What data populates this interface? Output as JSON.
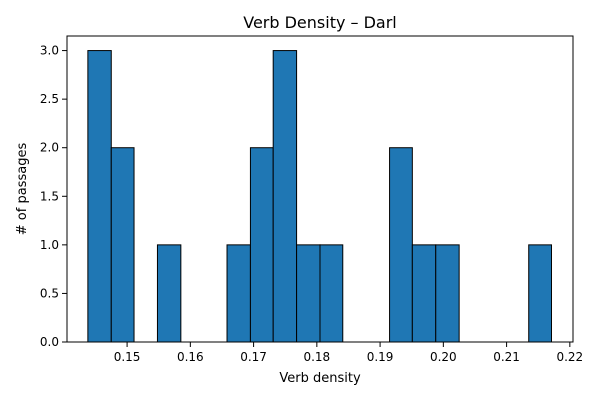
{
  "chart_data": {
    "type": "bar",
    "title": "Verb Density – Darl",
    "xlabel": "Verb density",
    "ylabel": "# of passages",
    "xlim": [
      0.1405,
      0.2205
    ],
    "ylim": [
      0,
      3.15
    ],
    "bar_color": "#1f77b4",
    "edge_color": "#000000",
    "grid": false,
    "legend": "none",
    "xticks": [
      0.15,
      0.16,
      0.17,
      0.18,
      0.19,
      0.2,
      0.21,
      0.22
    ],
    "xtick_labels": [
      "0.15",
      "0.16",
      "0.17",
      "0.18",
      "0.19",
      "0.20",
      "0.21",
      "0.22"
    ],
    "yticks": [
      0,
      0.5,
      1.0,
      1.5,
      2.0,
      2.5,
      3.0
    ],
    "ytick_labels": [
      "0.0",
      "0.5",
      "1.0",
      "1.5",
      "2.0",
      "2.5",
      "3.0"
    ],
    "bins": [
      {
        "x0": 0.1438,
        "x1": 0.1475,
        "count": 3
      },
      {
        "x0": 0.1475,
        "x1": 0.1511,
        "count": 2
      },
      {
        "x0": 0.1511,
        "x1": 0.1548,
        "count": 0
      },
      {
        "x0": 0.1548,
        "x1": 0.1585,
        "count": 1
      },
      {
        "x0": 0.1585,
        "x1": 0.1621,
        "count": 0
      },
      {
        "x0": 0.1621,
        "x1": 0.1658,
        "count": 0
      },
      {
        "x0": 0.1658,
        "x1": 0.1695,
        "count": 1
      },
      {
        "x0": 0.1695,
        "x1": 0.1731,
        "count": 2
      },
      {
        "x0": 0.1731,
        "x1": 0.1768,
        "count": 3
      },
      {
        "x0": 0.1768,
        "x1": 0.1805,
        "count": 1
      },
      {
        "x0": 0.1805,
        "x1": 0.1841,
        "count": 1
      },
      {
        "x0": 0.1841,
        "x1": 0.1878,
        "count": 0
      },
      {
        "x0": 0.1878,
        "x1": 0.1915,
        "count": 0
      },
      {
        "x0": 0.1915,
        "x1": 0.1951,
        "count": 2
      },
      {
        "x0": 0.1951,
        "x1": 0.1988,
        "count": 1
      },
      {
        "x0": 0.1988,
        "x1": 0.2025,
        "count": 1
      },
      {
        "x0": 0.2025,
        "x1": 0.2061,
        "count": 0
      },
      {
        "x0": 0.2061,
        "x1": 0.2098,
        "count": 0
      },
      {
        "x0": 0.2098,
        "x1": 0.2135,
        "count": 0
      },
      {
        "x0": 0.2135,
        "x1": 0.2171,
        "count": 1
      }
    ]
  }
}
